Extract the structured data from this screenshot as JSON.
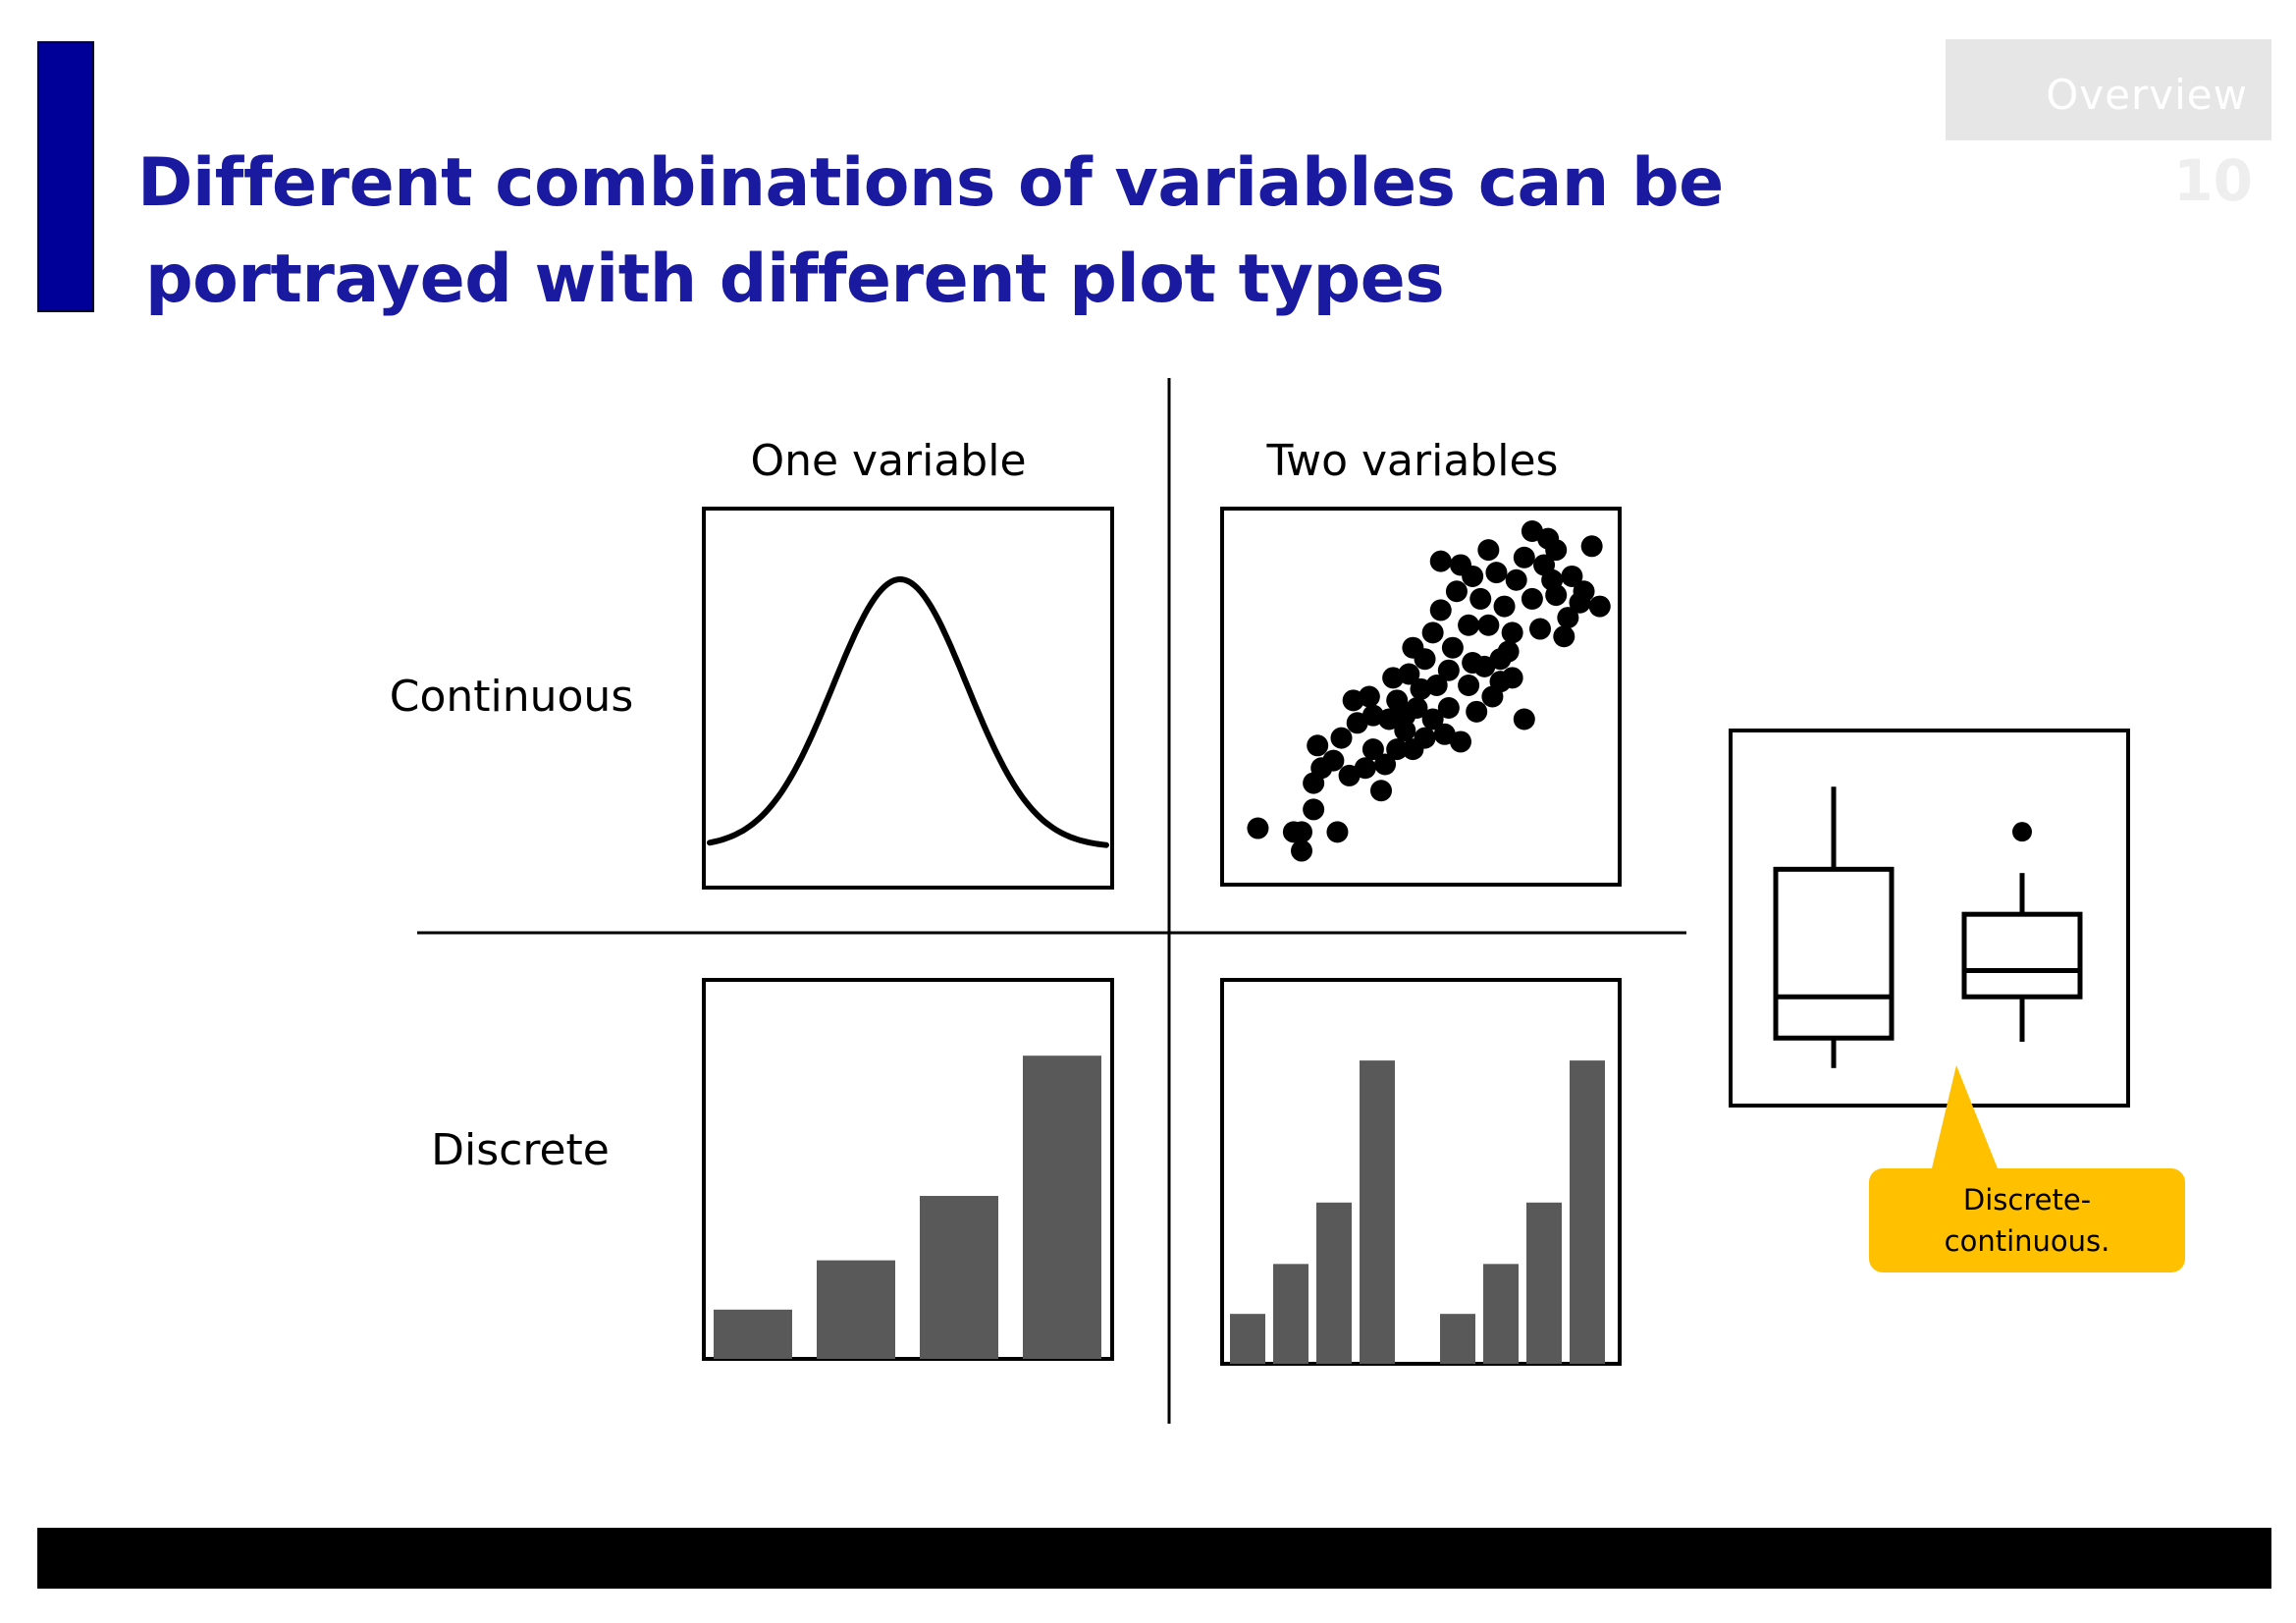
{
  "slide": {
    "title_line1": "Different combinations of variables can be",
    "title_line2": "portrayed with different plot types",
    "section_label": "Overview",
    "page_number": "10",
    "accent_color": "#000099",
    "title_color": "#1a1aa0"
  },
  "headers": {
    "columns": [
      "One variable",
      "Two variables"
    ],
    "rows": [
      "Continuous",
      "Discrete"
    ]
  },
  "callout": {
    "line1": "Discrete-",
    "line2": "continuous.",
    "color": "#ffc000"
  },
  "plots": {
    "one_continuous": {
      "type": "density-curve"
    },
    "two_continuous": {
      "type": "scatter",
      "points": [
        [
          0.09,
          0.15
        ],
        [
          0.18,
          0.14
        ],
        [
          0.2,
          0.09
        ],
        [
          0.2,
          0.14
        ],
        [
          0.23,
          0.2
        ],
        [
          0.23,
          0.27
        ],
        [
          0.29,
          0.14
        ],
        [
          0.25,
          0.31
        ],
        [
          0.24,
          0.37
        ],
        [
          0.28,
          0.33
        ],
        [
          0.3,
          0.39
        ],
        [
          0.32,
          0.29
        ],
        [
          0.34,
          0.43
        ],
        [
          0.36,
          0.31
        ],
        [
          0.4,
          0.25
        ],
        [
          0.38,
          0.36
        ],
        [
          0.42,
          0.44
        ],
        [
          0.44,
          0.36
        ],
        [
          0.46,
          0.41
        ],
        [
          0.48,
          0.36
        ],
        [
          0.49,
          0.47
        ],
        [
          0.51,
          0.39
        ],
        [
          0.53,
          0.44
        ],
        [
          0.54,
          0.53
        ],
        [
          0.56,
          0.4
        ],
        [
          0.57,
          0.47
        ],
        [
          0.6,
          0.38
        ],
        [
          0.62,
          0.53
        ],
        [
          0.64,
          0.46
        ],
        [
          0.66,
          0.58
        ],
        [
          0.68,
          0.5
        ],
        [
          0.7,
          0.6
        ],
        [
          0.73,
          0.55
        ],
        [
          0.76,
          0.44
        ],
        [
          0.38,
          0.45
        ],
        [
          0.44,
          0.49
        ],
        [
          0.47,
          0.56
        ],
        [
          0.51,
          0.6
        ],
        [
          0.53,
          0.67
        ],
        [
          0.55,
          0.73
        ],
        [
          0.58,
          0.63
        ],
        [
          0.59,
          0.78
        ],
        [
          0.62,
          0.69
        ],
        [
          0.63,
          0.82
        ],
        [
          0.65,
          0.76
        ],
        [
          0.67,
          0.69
        ],
        [
          0.69,
          0.83
        ],
        [
          0.71,
          0.74
        ],
        [
          0.73,
          0.67
        ],
        [
          0.74,
          0.81
        ],
        [
          0.76,
          0.87
        ],
        [
          0.78,
          0.76
        ],
        [
          0.8,
          0.68
        ],
        [
          0.81,
          0.85
        ],
        [
          0.82,
          0.92
        ],
        [
          0.84,
          0.77
        ],
        [
          0.86,
          0.66
        ],
        [
          0.87,
          0.71
        ],
        [
          0.88,
          0.82
        ],
        [
          0.9,
          0.75
        ],
        [
          0.93,
          0.9
        ],
        [
          0.95,
          0.74
        ],
        [
          0.78,
          0.94
        ],
        [
          0.84,
          0.89
        ],
        [
          0.6,
          0.85
        ],
        [
          0.55,
          0.86
        ],
        [
          0.48,
          0.63
        ],
        [
          0.5,
          0.52
        ],
        [
          0.43,
          0.55
        ],
        [
          0.41,
          0.32
        ],
        [
          0.37,
          0.5
        ],
        [
          0.57,
          0.57
        ],
        [
          0.63,
          0.59
        ],
        [
          0.7,
          0.54
        ],
        [
          0.91,
          0.78
        ],
        [
          0.83,
          0.81
        ],
        [
          0.67,
          0.89
        ],
        [
          0.72,
          0.62
        ],
        [
          0.33,
          0.49
        ],
        [
          0.46,
          0.45
        ]
      ]
    },
    "one_discrete": {
      "type": "bar",
      "values": [
        0.13,
        0.26,
        0.43,
        0.8
      ]
    },
    "two_discrete": {
      "type": "grouped-bar",
      "groups": [
        [
          0.13,
          0.26,
          0.42,
          0.79
        ],
        [
          0.13,
          0.26,
          0.42,
          0.79
        ]
      ]
    },
    "discrete_continuous": {
      "type": "boxplot",
      "boxes": [
        {
          "min": 0.1,
          "q1": 0.18,
          "median": 0.29,
          "q3": 0.63,
          "max": 0.85,
          "outlier": null
        },
        {
          "min": 0.17,
          "q1": 0.29,
          "median": 0.36,
          "q3": 0.51,
          "max": 0.62,
          "outlier": 0.73
        }
      ]
    }
  }
}
